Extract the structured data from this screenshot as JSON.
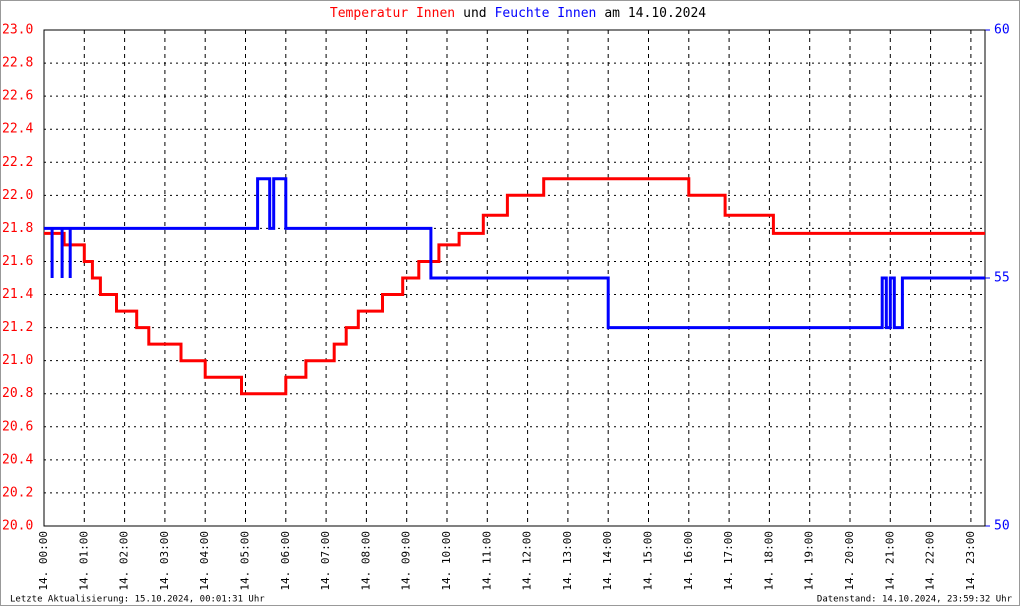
{
  "chart_data": {
    "type": "line",
    "title_parts": [
      {
        "text": "Temperatur Innen",
        "color": "#ff0000"
      },
      {
        "text": "und",
        "color": "#000000"
      },
      {
        "text": "Feuchte Innen",
        "color": "#0000ff"
      },
      {
        "text": "am 14.10.2024",
        "color": "#000000"
      }
    ],
    "footer_left": "Letzte Aktualisierung: 15.10.2024, 00:01:31 Uhr",
    "footer_right": "Datenstand: 14.10.2024, 23:59:32 Uhr",
    "xlim": [
      0,
      23.35
    ],
    "xticks": [
      {
        "value": 0,
        "label": "14. 00:00"
      },
      {
        "value": 1,
        "label": "14. 01:00"
      },
      {
        "value": 2,
        "label": "14. 02:00"
      },
      {
        "value": 3,
        "label": "14. 03:00"
      },
      {
        "value": 4,
        "label": "14. 04:00"
      },
      {
        "value": 5,
        "label": "14. 05:00"
      },
      {
        "value": 6,
        "label": "14. 06:00"
      },
      {
        "value": 7,
        "label": "14. 07:00"
      },
      {
        "value": 8,
        "label": "14. 08:00"
      },
      {
        "value": 9,
        "label": "14. 09:00"
      },
      {
        "value": 10,
        "label": "14. 10:00"
      },
      {
        "value": 11,
        "label": "14. 11:00"
      },
      {
        "value": 12,
        "label": "14. 12:00"
      },
      {
        "value": 13,
        "label": "14. 13:00"
      },
      {
        "value": 14,
        "label": "14. 14:00"
      },
      {
        "value": 15,
        "label": "14. 15:00"
      },
      {
        "value": 16,
        "label": "14. 16:00"
      },
      {
        "value": 17,
        "label": "14. 17:00"
      },
      {
        "value": 18,
        "label": "14. 18:00"
      },
      {
        "value": 19,
        "label": "14. 19:00"
      },
      {
        "value": 20,
        "label": "14. 20:00"
      },
      {
        "value": 21,
        "label": "14. 21:00"
      },
      {
        "value": 22,
        "label": "14. 22:00"
      },
      {
        "value": 23,
        "label": "14. 23:00"
      }
    ],
    "ylim": [
      20.0,
      23.0
    ],
    "yticks": [
      {
        "value": 20.0,
        "label": "20.0"
      },
      20.2,
      20.4,
      20.6,
      20.8,
      {
        "value": 21.0,
        "label": "21.0"
      },
      21.2,
      21.4,
      21.6,
      21.8,
      {
        "value": 22.0,
        "label": "22.0"
      },
      22.2,
      22.4,
      22.6,
      22.8,
      {
        "value": 23.0,
        "label": "23.0"
      }
    ],
    "y2lim": [
      50,
      60
    ],
    "y2ticks": [
      50,
      55,
      60
    ],
    "grid": true,
    "series": [
      {
        "name": "Temperatur Innen",
        "color": "#ff0000",
        "axis": "y",
        "x": [
          0,
          0.5,
          0.5,
          1.0,
          1.0,
          1.2,
          1.2,
          1.4,
          1.4,
          1.8,
          1.8,
          2.3,
          2.3,
          2.6,
          2.6,
          3.4,
          3.4,
          4.0,
          4.0,
          4.9,
          4.9,
          6.0,
          6.0,
          6.5,
          6.5,
          7.2,
          7.2,
          7.5,
          7.5,
          7.8,
          7.8,
          8.4,
          8.4,
          8.9,
          8.9,
          9.3,
          9.3,
          9.8,
          9.8,
          10.3,
          10.3,
          10.9,
          10.9,
          11.5,
          11.5,
          12.4,
          12.4,
          16.0,
          16.0,
          16.9,
          16.9,
          18.1,
          18.1,
          23.35
        ],
        "values": [
          21.77,
          21.77,
          21.7,
          21.7,
          21.6,
          21.6,
          21.5,
          21.5,
          21.4,
          21.4,
          21.3,
          21.3,
          21.2,
          21.2,
          21.1,
          21.1,
          21.0,
          21.0,
          20.9,
          20.9,
          20.8,
          20.8,
          20.9,
          20.9,
          21.0,
          21.0,
          21.1,
          21.1,
          21.2,
          21.2,
          21.3,
          21.3,
          21.4,
          21.4,
          21.5,
          21.5,
          21.6,
          21.6,
          21.7,
          21.7,
          21.77,
          21.77,
          21.88,
          21.88,
          22.0,
          22.0,
          22.1,
          22.1,
          22.0,
          22.0,
          21.88,
          21.88,
          21.77,
          21.77
        ]
      },
      {
        "name": "Feuchte Innen",
        "color": "#0000ff",
        "axis": "y2",
        "x": [
          0,
          0.2,
          0.2,
          0.2,
          0.45,
          0.45,
          0.45,
          0.65,
          0.65,
          0.65,
          5.3,
          5.3,
          5.6,
          5.6,
          5.7,
          5.7,
          6.0,
          6.0,
          9.6,
          9.6,
          14.0,
          14.0,
          20.8,
          20.8,
          20.9,
          20.9,
          21.0,
          21.0,
          21.1,
          21.1,
          21.3,
          21.3,
          23.35
        ],
        "values": [
          56,
          56,
          55,
          56,
          56,
          55,
          56,
          56,
          55,
          56,
          56,
          57,
          57,
          56,
          56,
          57,
          57,
          56,
          56,
          55,
          55,
          54,
          54,
          55,
          55,
          54,
          54,
          55,
          55,
          54,
          54,
          55,
          55
        ]
      }
    ]
  }
}
